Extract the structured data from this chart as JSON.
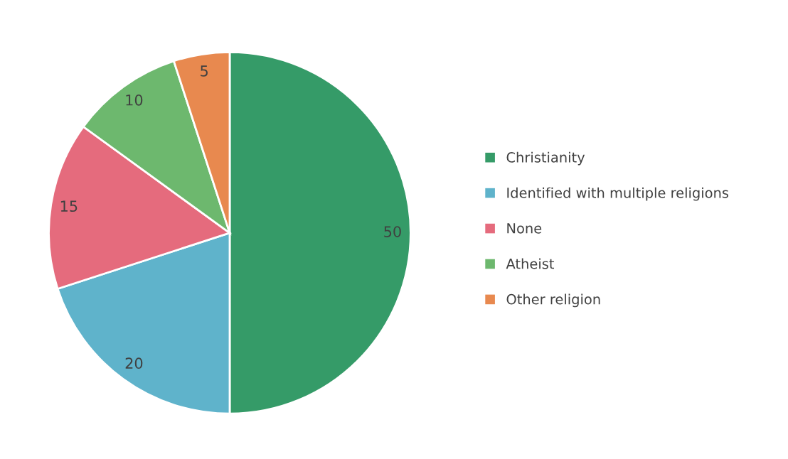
{
  "chart_data": {
    "type": "pie",
    "categories": [
      "Christianity",
      "Identified with multiple religions",
      "None",
      "Atheist",
      "Other religion"
    ],
    "values": [
      50,
      20,
      15,
      10,
      5
    ],
    "colors": [
      "#359b68",
      "#5fb3cb",
      "#e56b7d",
      "#6db86e",
      "#e8894f"
    ],
    "data_labels": true,
    "legend": "right"
  }
}
